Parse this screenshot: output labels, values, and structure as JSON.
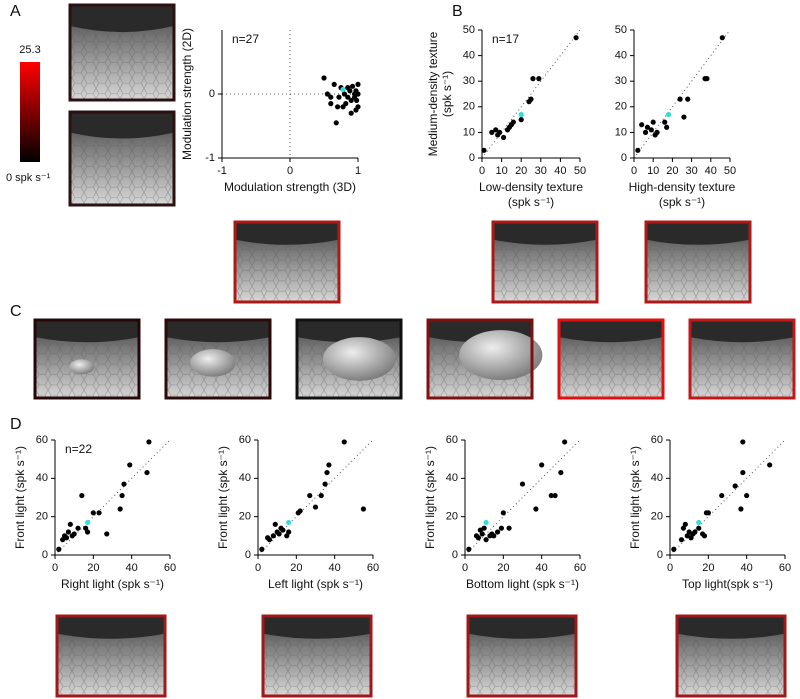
{
  "panel_labels": [
    "A",
    "B",
    "C",
    "D"
  ],
  "colorbar": {
    "colors": [
      "#000000",
      "#ff0000"
    ],
    "ticks": [
      {
        "value": 0,
        "label": "0 spk s⁻¹"
      },
      25.3
    ]
  },
  "chart_data": [
    {
      "type": "scatter",
      "annotation": "n=27",
      "reference_lines": "axes",
      "xlabel": [
        "Modulation strength (3D)"
      ],
      "ylabel": [
        "Modulation strength (2D)"
      ],
      "xlim": [
        -1,
        1
      ],
      "xticks": [
        -1,
        0,
        1
      ],
      "ylim": [
        -1,
        1
      ],
      "yticks": [
        -1,
        0
      ],
      "series": [
        {
          "color": "#000000",
          "x": [
            0.5,
            0.55,
            0.6,
            0.65,
            0.7,
            0.72,
            0.75,
            0.8,
            0.82,
            0.85,
            0.9,
            0.92,
            0.95,
            0.97,
            1.0,
            0.98,
            1.0,
            0.95,
            0.9,
            0.68,
            0.6,
            0.85,
            0.88,
            0.97,
            1.0,
            0.78
          ],
          "values": [
            0.25,
            0,
            -0.05,
            0.15,
            -0.2,
            -0.05,
            0.1,
            0,
            -0.15,
            0.1,
            -0.3,
            0.12,
            -0.05,
            0.05,
            0.15,
            -0.1,
            -0.2,
            0,
            -0.1,
            -0.45,
            -0.15,
            -0.05,
            0.05,
            -0.25,
            0,
            -0.2
          ]
        },
        {
          "color": "#33dddd",
          "x": [
            0.78
          ],
          "values": [
            0.07
          ]
        }
      ]
    },
    {
      "type": "scatter",
      "annotation": "n=17",
      "reference_lines": "diagonal",
      "xlabel": [
        "Low-density texture",
        "(spk s⁻¹)"
      ],
      "ylabel": [
        "Medium-density texture",
        "(spk s⁻¹)"
      ],
      "xlim": [
        0,
        50
      ],
      "xticks": [
        0,
        10,
        20,
        30,
        40,
        50
      ],
      "ylim": [
        0,
        50
      ],
      "yticks": [
        0,
        10,
        20,
        30,
        40,
        50
      ],
      "series": [
        {
          "color": "#000000",
          "x": [
            1,
            5,
            7,
            8,
            9,
            11,
            13,
            14,
            15,
            16,
            20,
            24,
            25,
            26,
            29,
            48
          ],
          "values": [
            3,
            10,
            11,
            9,
            10,
            8,
            11,
            12,
            13,
            14,
            15,
            22,
            23,
            31,
            31,
            47
          ]
        },
        {
          "color": "#33dddd",
          "x": [
            20
          ],
          "values": [
            17
          ]
        }
      ]
    },
    {
      "type": "scatter",
      "reference_lines": "diagonal",
      "xlabel": [
        "High-density texture",
        "(spk s⁻¹)"
      ],
      "xlim": [
        0,
        50
      ],
      "xticks": [
        0,
        10,
        20,
        30,
        40,
        50
      ],
      "ylim": [
        0,
        50
      ],
      "yticks": [
        0,
        10,
        20,
        30,
        40,
        50
      ],
      "series": [
        {
          "color": "#000000",
          "x": [
            2,
            4,
            6,
            7,
            9,
            10,
            11,
            12,
            17,
            16,
            24,
            26,
            28,
            38,
            37,
            46
          ],
          "values": [
            3,
            13,
            10,
            12,
            11,
            14,
            9,
            10,
            12,
            14,
            23,
            16,
            23,
            31,
            31,
            47
          ]
        },
        {
          "color": "#33dddd",
          "x": [
            18
          ],
          "values": [
            17
          ]
        }
      ]
    },
    {
      "type": "scatter",
      "annotation": "n=22",
      "reference_lines": "diagonal",
      "xlabel": [
        "Right light (spk s⁻¹)"
      ],
      "ylabel": [
        "Front light (spk s⁻¹)"
      ],
      "xlim": [
        0,
        60
      ],
      "xticks": [
        0,
        20,
        40,
        60
      ],
      "ylim": [
        0,
        60
      ],
      "yticks": [
        0,
        20,
        40,
        60
      ],
      "series": [
        {
          "color": "#000000",
          "x": [
            2,
            4,
            5,
            6,
            7,
            8,
            9,
            10,
            12,
            14,
            16,
            17,
            20,
            23,
            27,
            34,
            35,
            36,
            39,
            48,
            49
          ],
          "values": [
            3,
            8,
            10,
            9,
            12,
            16,
            10,
            11,
            14,
            31,
            14,
            12,
            22,
            22,
            11,
            24,
            31,
            37,
            47,
            43,
            59
          ]
        },
        {
          "color": "#33dddd",
          "x": [
            17
          ],
          "values": [
            17
          ]
        }
      ]
    },
    {
      "type": "scatter",
      "reference_lines": "diagonal",
      "xlabel": [
        "Left light (spk s⁻¹)"
      ],
      "ylabel": [
        "Front light (spk s⁻¹)"
      ],
      "xlim": [
        0,
        60
      ],
      "xticks": [
        0,
        20,
        40,
        60
      ],
      "ylim": [
        0,
        60
      ],
      "yticks": [
        0,
        20,
        40,
        60
      ],
      "series": [
        {
          "color": "#000000",
          "x": [
            2,
            6,
            8,
            9,
            10,
            11,
            13,
            15,
            16,
            21,
            22,
            27,
            33,
            35,
            36,
            37,
            45,
            55,
            30,
            12,
            5
          ],
          "values": [
            3,
            8,
            10,
            16,
            12,
            11,
            13,
            10,
            12,
            22,
            23,
            31,
            31,
            37,
            43,
            47,
            59,
            24,
            25,
            14,
            9
          ]
        },
        {
          "color": "#33dddd",
          "x": [
            16
          ],
          "values": [
            17
          ]
        }
      ]
    },
    {
      "type": "scatter",
      "reference_lines": "diagonal",
      "xlabel": [
        "Bottom light (spk s⁻¹)"
      ],
      "ylabel": [
        "Front light (spk s⁻¹)"
      ],
      "xlim": [
        0,
        60
      ],
      "xticks": [
        0,
        20,
        40,
        60
      ],
      "ylim": [
        0,
        60
      ],
      "yticks": [
        0,
        20,
        40,
        60
      ],
      "series": [
        {
          "color": "#000000",
          "x": [
            2,
            6,
            8,
            9,
            11,
            13,
            15,
            17,
            19,
            23,
            30,
            37,
            40,
            45,
            47,
            50,
            52,
            14,
            20,
            7,
            10
          ],
          "values": [
            3,
            10,
            13,
            11,
            8,
            10,
            10,
            12,
            14,
            14,
            37,
            24,
            47,
            31,
            31,
            43,
            59,
            11,
            22,
            9,
            14
          ]
        },
        {
          "color": "#33dddd",
          "x": [
            11
          ],
          "values": [
            17
          ]
        }
      ]
    },
    {
      "type": "scatter",
      "reference_lines": "diagonal",
      "xlabel": [
        "Top light(spk s⁻¹)"
      ],
      "ylabel": [
        "Front light (spk s⁻¹)"
      ],
      "xlim": [
        0,
        60
      ],
      "xticks": [
        0,
        20,
        40,
        60
      ],
      "ylim": [
        0,
        60
      ],
      "yticks": [
        0,
        20,
        40,
        60
      ],
      "series": [
        {
          "color": "#000000",
          "x": [
            2,
            6,
            7,
            8,
            9,
            11,
            12,
            13,
            15,
            17,
            19,
            20,
            27,
            34,
            37,
            38,
            38,
            40,
            52,
            10,
            18
          ],
          "values": [
            3,
            8,
            14,
            16,
            10,
            9,
            11,
            12,
            14,
            11,
            22,
            22,
            31,
            36,
            24,
            43,
            59,
            31,
            47,
            12,
            10
          ]
        },
        {
          "color": "#33dddd",
          "x": [
            15
          ],
          "values": [
            17
          ]
        }
      ]
    }
  ]
}
